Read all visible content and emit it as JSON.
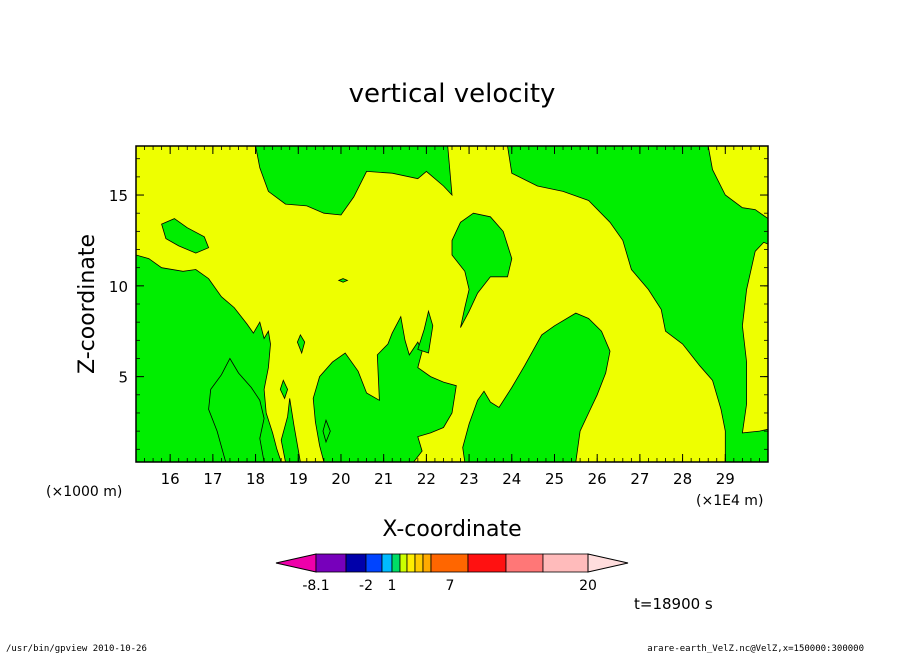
{
  "chart_data": {
    "type": "heatmap",
    "title": "vertical velocity",
    "xlabel": "X-coordinate",
    "ylabel": "Z-coordinate",
    "xlim": [
      15.2,
      30
    ],
    "ylim": [
      0.3,
      17.7
    ],
    "x_ticks": [
      16,
      17,
      18,
      19,
      20,
      21,
      22,
      23,
      24,
      25,
      26,
      27,
      28,
      29
    ],
    "x_tick_labels": [
      "16",
      "17",
      "18",
      "19",
      "20",
      "21",
      "22",
      "23",
      "24",
      "25",
      "26",
      "27",
      "28",
      "29"
    ],
    "y_ticks": [
      5,
      10,
      15
    ],
    "y_tick_labels": [
      "5",
      "10",
      "15"
    ],
    "x_unit_left": "(×1000 m)",
    "x_unit_right": "(×1E4 m)",
    "time_label": "t=18900 s",
    "colors": {
      "green": "#00ee00",
      "yellow": "#eeff00",
      "frame": "#000000"
    },
    "colorbar": {
      "colors": [
        "#ee00aa",
        "#7700bb",
        "#0000aa",
        "#0044ff",
        "#00bbff",
        "#00dd66",
        "#ccff00",
        "#ffee00",
        "#ffcc00",
        "#ffaa00",
        "#ff6600",
        "#ff1111",
        "#ff7777",
        "#ffbbbb",
        "#ffdddd"
      ],
      "tick_labels": [
        "-8.1",
        "-2",
        "1",
        "7",
        "20"
      ]
    },
    "regions": [
      {
        "color": "yellow",
        "polygon": [
          [
            15.2,
            17.7
          ],
          [
            30,
            17.7
          ],
          [
            30,
            0.3
          ],
          [
            15.2,
            0.3
          ]
        ]
      },
      {
        "color": "green",
        "polygon": [
          [
            15.2,
            11.7
          ],
          [
            15.5,
            11.5
          ],
          [
            15.8,
            11
          ],
          [
            16.3,
            10.8
          ],
          [
            16.6,
            10.9
          ],
          [
            16.9,
            10.4
          ],
          [
            17.2,
            9.4
          ],
          [
            17.5,
            8.8
          ],
          [
            17.8,
            7.9
          ],
          [
            17.95,
            7.4
          ],
          [
            18.1,
            8.0
          ],
          [
            18.2,
            7.1
          ],
          [
            18.3,
            7.5
          ],
          [
            18.35,
            6.8
          ],
          [
            18.3,
            5.5
          ],
          [
            18.2,
            4.3
          ],
          [
            18.25,
            3.0
          ],
          [
            18.4,
            1.9
          ],
          [
            18.5,
            1.0
          ],
          [
            18.6,
            0.3
          ],
          [
            15.2,
            0.3
          ]
        ]
      },
      {
        "color": "green",
        "polygon": [
          [
            17.3,
            0.3
          ],
          [
            17.1,
            2.0
          ],
          [
            16.9,
            3.2
          ],
          [
            16.95,
            4.3
          ],
          [
            17.2,
            5.1
          ],
          [
            17.4,
            6.0
          ],
          [
            17.6,
            5.2
          ],
          [
            17.9,
            4.4
          ],
          [
            18.1,
            3.7
          ],
          [
            18.2,
            2.7
          ],
          [
            18.1,
            1.6
          ],
          [
            18.2,
            0.3
          ]
        ]
      },
      {
        "color": "green",
        "polygon": [
          [
            18.7,
            0.3
          ],
          [
            18.6,
            1.5
          ],
          [
            18.75,
            2.8
          ],
          [
            18.8,
            3.8
          ],
          [
            18.9,
            2.3
          ],
          [
            19.05,
            0.3
          ]
        ]
      },
      {
        "color": "green",
        "polygon": [
          [
            19.6,
            0.3
          ],
          [
            19.5,
            1.2
          ],
          [
            19.4,
            2.5
          ],
          [
            19.35,
            3.8
          ],
          [
            19.5,
            5.0
          ],
          [
            19.8,
            5.8
          ],
          [
            20.1,
            6.3
          ],
          [
            20.4,
            5.3
          ],
          [
            20.6,
            4.1
          ],
          [
            20.9,
            3.7
          ],
          [
            20.85,
            6.2
          ],
          [
            21.1,
            6.8
          ],
          [
            21.2,
            7.4
          ],
          [
            21.4,
            8.3
          ],
          [
            21.5,
            7.0
          ],
          [
            21.6,
            6.2
          ],
          [
            21.8,
            6.9
          ],
          [
            21.9,
            6.4
          ],
          [
            21.8,
            5.5
          ],
          [
            22.1,
            5.0
          ],
          [
            22.4,
            4.7
          ],
          [
            22.7,
            4.5
          ],
          [
            22.6,
            3.0
          ],
          [
            22.4,
            2.2
          ],
          [
            22.1,
            1.9
          ],
          [
            21.8,
            1.7
          ],
          [
            21.9,
            0.9
          ],
          [
            21.7,
            0.3
          ]
        ]
      },
      {
        "color": "green",
        "polygon": [
          [
            22.9,
            0.3
          ],
          [
            22.85,
            1.1
          ],
          [
            23.0,
            2.4
          ],
          [
            23.2,
            3.7
          ],
          [
            23.35,
            4.2
          ],
          [
            23.5,
            3.6
          ],
          [
            23.7,
            3.3
          ],
          [
            24.0,
            4.4
          ],
          [
            24.3,
            5.6
          ],
          [
            24.7,
            7.3
          ],
          [
            25.0,
            7.8
          ],
          [
            25.5,
            8.5
          ],
          [
            25.8,
            8.2
          ],
          [
            26.1,
            7.5
          ],
          [
            26.3,
            6.4
          ],
          [
            26.2,
            5.2
          ],
          [
            26.0,
            4.0
          ],
          [
            25.8,
            3.0
          ],
          [
            25.6,
            2.0
          ],
          [
            25.5,
            0.3
          ]
        ]
      },
      {
        "color": "green",
        "polygon": [
          [
            15.2,
            17.7
          ],
          [
            18.0,
            17.7
          ],
          [
            18.1,
            16.5
          ],
          [
            18.3,
            15.2
          ],
          [
            18.7,
            14.5
          ],
          [
            19.2,
            14.4
          ],
          [
            19.6,
            14.0
          ],
          [
            20.0,
            13.9
          ],
          [
            20.3,
            14.9
          ],
          [
            20.6,
            16.3
          ],
          [
            21.2,
            16.2
          ],
          [
            21.8,
            15.9
          ],
          [
            22.0,
            16.3
          ],
          [
            22.4,
            15.5
          ],
          [
            22.6,
            15.0
          ],
          [
            22.5,
            17.7
          ]
        ]
      },
      {
        "color": "green",
        "polygon": [
          [
            23.9,
            17.7
          ],
          [
            24.0,
            16.2
          ],
          [
            24.6,
            15.5
          ],
          [
            25.2,
            15.2
          ],
          [
            25.8,
            14.7
          ],
          [
            26.3,
            13.5
          ],
          [
            26.6,
            12.5
          ],
          [
            26.8,
            10.9
          ],
          [
            27.2,
            9.8
          ],
          [
            27.5,
            8.7
          ],
          [
            27.6,
            7.5
          ],
          [
            28.0,
            6.8
          ],
          [
            28.4,
            5.6
          ],
          [
            28.7,
            4.8
          ],
          [
            28.9,
            3.2
          ],
          [
            29.0,
            2.0
          ],
          [
            29.0,
            0.3
          ],
          [
            30,
            0.3
          ],
          [
            30,
            2.1
          ],
          [
            29.8,
            2.0
          ],
          [
            29.4,
            1.9
          ],
          [
            29.5,
            3.5
          ],
          [
            29.5,
            5.8
          ],
          [
            29.4,
            7.8
          ],
          [
            29.5,
            9.8
          ],
          [
            29.7,
            11.9
          ],
          [
            29.9,
            12.4
          ],
          [
            30,
            12.3
          ],
          [
            30,
            13.7
          ],
          [
            29.7,
            14.2
          ],
          [
            29.4,
            14.3
          ],
          [
            29.0,
            15.0
          ],
          [
            28.7,
            16.4
          ],
          [
            28.6,
            17.7
          ]
        ]
      },
      {
        "color": "green",
        "polygon": [
          [
            22.6,
            12.5
          ],
          [
            22.8,
            13.5
          ],
          [
            23.1,
            14.0
          ],
          [
            23.5,
            13.8
          ],
          [
            23.8,
            13.0
          ],
          [
            24.0,
            11.5
          ],
          [
            23.9,
            10.5
          ],
          [
            23.5,
            10.5
          ],
          [
            23.2,
            9.6
          ],
          [
            23.0,
            8.6
          ],
          [
            22.8,
            7.7
          ],
          [
            22.9,
            8.8
          ],
          [
            23.0,
            9.8
          ],
          [
            22.9,
            10.8
          ],
          [
            22.6,
            11.7
          ]
        ]
      },
      {
        "color": "green",
        "polygon": [
          [
            15.8,
            13.4
          ],
          [
            16.1,
            13.7
          ],
          [
            16.4,
            13.2
          ],
          [
            16.8,
            12.7
          ],
          [
            16.9,
            12.1
          ],
          [
            16.6,
            11.8
          ],
          [
            16.2,
            12.2
          ],
          [
            15.9,
            12.6
          ]
        ]
      },
      {
        "color": "green",
        "polygon": [
          [
            21.8,
            6.5
          ],
          [
            21.95,
            7.6
          ],
          [
            22.05,
            8.6
          ],
          [
            22.15,
            7.8
          ],
          [
            22.05,
            6.3
          ]
        ]
      },
      {
        "color": "green",
        "polygon": [
          [
            19.05,
            7.3
          ],
          [
            19.15,
            6.9
          ],
          [
            19.08,
            6.3
          ],
          [
            18.98,
            6.9
          ]
        ]
      },
      {
        "color": "green",
        "polygon": [
          [
            18.65,
            4.8
          ],
          [
            18.75,
            4.3
          ],
          [
            18.68,
            3.8
          ],
          [
            18.58,
            4.3
          ]
        ]
      },
      {
        "color": "green",
        "polygon": [
          [
            20.05,
            10.4
          ],
          [
            20.15,
            10.3
          ],
          [
            20.05,
            10.2
          ],
          [
            19.95,
            10.3
          ]
        ]
      },
      {
        "color": "green",
        "polygon": [
          [
            19.65,
            2.6
          ],
          [
            19.75,
            2.0
          ],
          [
            19.65,
            1.4
          ],
          [
            19.58,
            2.0
          ]
        ]
      }
    ]
  },
  "footer": {
    "left": "/usr/bin/gpview   2010-10-26",
    "right": "arare-earth_VelZ.nc@VelZ,x=150000:300000"
  }
}
